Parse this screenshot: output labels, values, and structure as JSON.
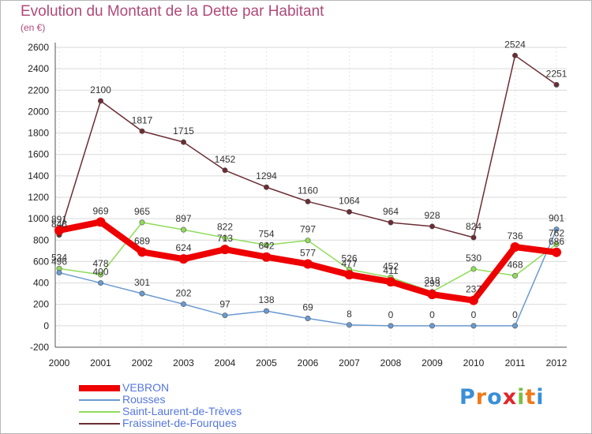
{
  "chart_data": {
    "type": "line",
    "title": "Evolution du Montant de la Dette par Habitant",
    "subtitle": "(en €)",
    "x": [
      "2000",
      "2001",
      "2002",
      "2003",
      "2004",
      "2005",
      "2006",
      "2007",
      "2008",
      "2009",
      "2010",
      "2011",
      "2012"
    ],
    "ylim": [
      -200,
      2600
    ],
    "yticks": [
      -200,
      0,
      200,
      400,
      600,
      800,
      1000,
      1200,
      1400,
      1600,
      1800,
      2000,
      2200,
      2400,
      2600
    ],
    "grid": "horizontal",
    "legend_position": "bottom-left",
    "series": [
      {
        "name": "Fraissinet-de-Fourques",
        "color": "#6b2c34",
        "values": [
          848,
          2100,
          1817,
          1715,
          1452,
          1294,
          1160,
          1064,
          964,
          928,
          824,
          2524,
          2251
        ]
      },
      {
        "name": "Saint-Laurent-de-Trèves",
        "color": "#8fdc5a",
        "values": [
          534,
          478,
          965,
          897,
          822,
          754,
          797,
          526,
          452,
          318,
          530,
          468,
          762
        ]
      },
      {
        "name": "Rousses",
        "color": "#6a9ad0",
        "values": [
          496,
          400,
          301,
          202,
          97,
          138,
          69,
          8,
          0,
          0,
          0,
          0,
          901
        ]
      },
      {
        "name": "VEBRON",
        "color": "#ee0000",
        "values": [
          891,
          969,
          689,
          624,
          713,
          642,
          577,
          477,
          411,
          293,
          237,
          736,
          686
        ]
      }
    ]
  },
  "legend": {
    "items": [
      {
        "label": "VEBRON",
        "color": "#ee0000"
      },
      {
        "label": "Rousses",
        "color": "#6a9ad0"
      },
      {
        "label": "Saint-Laurent-de-Trèves",
        "color": "#8fdc5a"
      },
      {
        "label": "Fraissinet-de-Fourques",
        "color": "#6b2c34"
      }
    ]
  },
  "logo": {
    "text": "Proxiti",
    "letter_colors": [
      "#3a8fd8",
      "#f07a1a",
      "#3a8fd8",
      "#e0262a",
      "#7ac043",
      "#f07a1a",
      "#3a8fd8"
    ]
  }
}
